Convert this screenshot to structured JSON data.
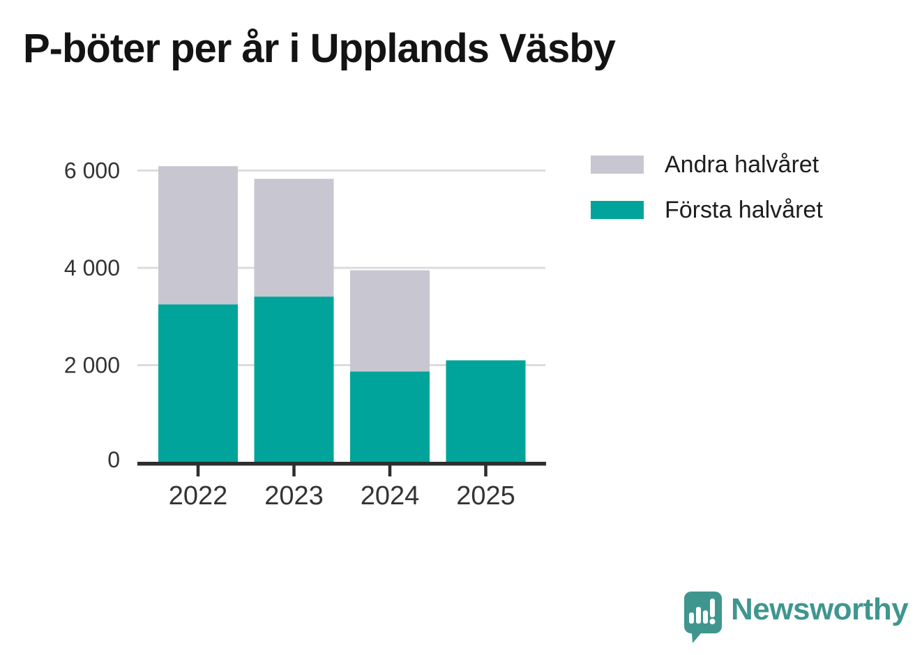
{
  "title": "P-böter per år i Upplands Väsby",
  "chart_data": {
    "type": "bar",
    "stacked": true,
    "title": "P-böter per år i Upplands Väsby",
    "categories": [
      "2022",
      "2023",
      "2024",
      "2025"
    ],
    "series": [
      {
        "name": "Första halvåret",
        "color": "#00a49a",
        "values": [
          3250,
          3410,
          1870,
          2100
        ]
      },
      {
        "name": "Andra halvåret",
        "color": "#c8c6d0",
        "values": [
          2840,
          2420,
          2080,
          0
        ]
      }
    ],
    "totals": [
      6090,
      5830,
      3950,
      2100
    ],
    "xlabel": "",
    "ylabel": "",
    "ylim": [
      0,
      6200
    ],
    "yticks": [
      0,
      2000,
      4000,
      6000
    ],
    "ytick_labels": [
      "0",
      "2 000",
      "4 000",
      "6 000"
    ],
    "grid": "horizontal",
    "legend_position": "top-right"
  },
  "legend": {
    "items": [
      {
        "label": "Andra halvåret",
        "color": "#c8c6d0"
      },
      {
        "label": "Första halvåret",
        "color": "#00a49a"
      }
    ]
  },
  "branding": {
    "name": "Newsworthy",
    "color": "#3f968f",
    "icon": "newsworthy-speech-bubble-chart-logo"
  },
  "colors": {
    "first_half": "#00a49a",
    "second_half": "#c8c6d0",
    "gridline": "#dcdcdc",
    "axis": "#2e2e2e",
    "tick_text": "#333333",
    "title_text": "#131313",
    "brand_teal": "#3f968f"
  }
}
